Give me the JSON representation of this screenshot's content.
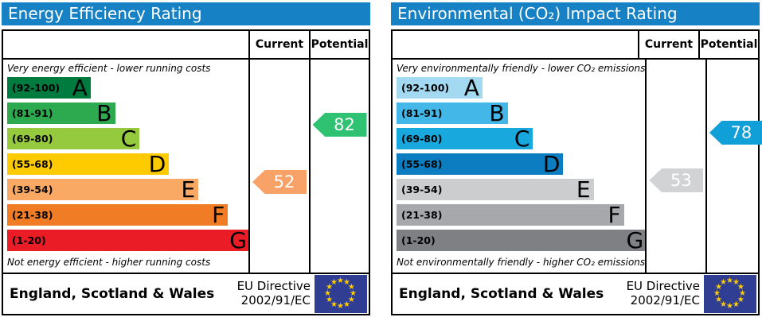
{
  "colors": {
    "header_bg": "#1681c4",
    "eu_flag_bg": "#2f3e93",
    "eu_star": "#ffcc00",
    "border": "#000000"
  },
  "charts": [
    {
      "title": "Energy Efficiency Rating",
      "columns": {
        "current": "Current",
        "potential": "Potential"
      },
      "top_caption": "Very energy efficient - lower running costs",
      "bottom_caption": "Not energy efficient - higher running costs",
      "bands": [
        {
          "letter": "A",
          "range": "(92-100)",
          "color": "#007b40",
          "width_pct": 34
        },
        {
          "letter": "B",
          "range": "(81-91)",
          "color": "#2daa4f",
          "width_pct": 44
        },
        {
          "letter": "C",
          "range": "(69-80)",
          "color": "#95ca3f",
          "width_pct": 54
        },
        {
          "letter": "D",
          "range": "(55-68)",
          "color": "#fecb00",
          "width_pct": 66
        },
        {
          "letter": "E",
          "range": "(39-54)",
          "color": "#faa965",
          "width_pct": 78
        },
        {
          "letter": "F",
          "range": "(21-38)",
          "color": "#f07d25",
          "width_pct": 90
        },
        {
          "letter": "G",
          "range": "(1-20)",
          "color": "#ea1c25",
          "width_pct": 99
        }
      ],
      "current": {
        "value": 52,
        "band": "E",
        "color": "#f9a268"
      },
      "potential": {
        "value": 82,
        "band": "B",
        "color": "#2ec272"
      },
      "footer": {
        "region": "England, Scotland & Wales",
        "directive_line1": "EU Directive",
        "directive_line2": "2002/91/EC"
      }
    },
    {
      "title": "Environmental (CO₂) Impact Rating",
      "columns": {
        "current": "Current",
        "potential": "Potential"
      },
      "top_caption": "Very environmentally friendly - lower CO₂ emissions",
      "bottom_caption": "Not environmentally friendly - higher CO₂ emissions",
      "bands": [
        {
          "letter": "A",
          "range": "(92-100)",
          "color": "#a3daf1",
          "width_pct": 34
        },
        {
          "letter": "B",
          "range": "(81-91)",
          "color": "#43b7e7",
          "width_pct": 44
        },
        {
          "letter": "C",
          "range": "(69-80)",
          "color": "#19a8de",
          "width_pct": 54
        },
        {
          "letter": "D",
          "range": "(55-68)",
          "color": "#0d7dc1",
          "width_pct": 66
        },
        {
          "letter": "E",
          "range": "(39-54)",
          "color": "#cccdcf",
          "width_pct": 78
        },
        {
          "letter": "F",
          "range": "(21-38)",
          "color": "#a6a8ab",
          "width_pct": 90
        },
        {
          "letter": "G",
          "range": "(1-20)",
          "color": "#7e8083",
          "width_pct": 99
        }
      ],
      "current": {
        "value": 53,
        "band": "E",
        "color": "#d2d3d5"
      },
      "potential": {
        "value": 78,
        "band": "C",
        "color": "#119fd8"
      },
      "footer": {
        "region": "England, Scotland & Wales",
        "directive_line1": "EU Directive",
        "directive_line2": "2002/91/EC"
      }
    }
  ],
  "chart_data": [
    {
      "type": "bar",
      "title": "Energy Efficiency Rating",
      "categories": [
        "A (92-100)",
        "B (81-91)",
        "C (69-80)",
        "D (55-68)",
        "E (39-54)",
        "F (21-38)",
        "G (1-20)"
      ],
      "band_width_pct": [
        34,
        44,
        54,
        66,
        78,
        90,
        99
      ],
      "current_rating": 52,
      "current_band": "E",
      "potential_rating": 82,
      "potential_band": "B",
      "scale": [
        1,
        100
      ],
      "region": "England, Scotland & Wales",
      "directive": "EU Directive 2002/91/EC"
    },
    {
      "type": "bar",
      "title": "Environmental (CO₂) Impact Rating",
      "categories": [
        "A (92-100)",
        "B (81-91)",
        "C (69-80)",
        "D (55-68)",
        "E (39-54)",
        "F (21-38)",
        "G (1-20)"
      ],
      "band_width_pct": [
        34,
        44,
        54,
        66,
        78,
        90,
        99
      ],
      "current_rating": 53,
      "current_band": "E",
      "potential_rating": 78,
      "potential_band": "C",
      "scale": [
        1,
        100
      ],
      "region": "England, Scotland & Wales",
      "directive": "EU Directive 2002/91/EC"
    }
  ]
}
